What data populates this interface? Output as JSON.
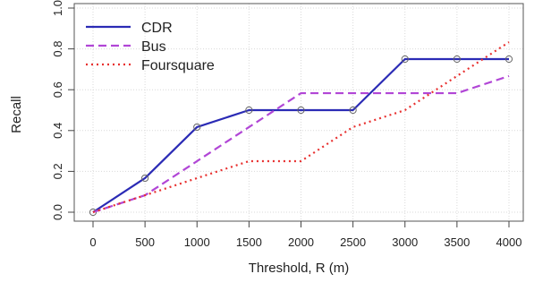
{
  "chart_data": {
    "type": "line",
    "title": "",
    "xlabel": "Threshold, R (m)",
    "ylabel": "Recall",
    "xlim": [
      0,
      4000
    ],
    "ylim": [
      0,
      1.0
    ],
    "x_ticks": [
      "0",
      "500",
      "1000",
      "1500",
      "2000",
      "2500",
      "3000",
      "3500",
      "4000"
    ],
    "y_ticks": [
      "0.0",
      "0.2",
      "0.4",
      "0.6",
      "0.8",
      "1.0"
    ],
    "grid": true,
    "legend_position": "top-left",
    "x": [
      0,
      500,
      1000,
      1500,
      2000,
      2500,
      3000,
      3500,
      4000
    ],
    "series": [
      {
        "name": "CDR",
        "values": [
          0.0,
          0.167,
          0.417,
          0.5,
          0.5,
          0.5,
          0.75,
          0.75,
          0.75
        ],
        "color": "#2b2bb5",
        "style": "solid",
        "markers": true
      },
      {
        "name": "Bus",
        "values": [
          0.0,
          0.083,
          0.25,
          0.417,
          0.583,
          0.583,
          0.583,
          0.583,
          0.667
        ],
        "color": "#b146d6",
        "style": "dashed",
        "markers": false
      },
      {
        "name": "Foursquare",
        "values": [
          0.0,
          0.083,
          0.167,
          0.25,
          0.25,
          0.417,
          0.5,
          0.667,
          0.833
        ],
        "color": "#e8302f",
        "style": "dotted",
        "markers": false
      }
    ]
  }
}
